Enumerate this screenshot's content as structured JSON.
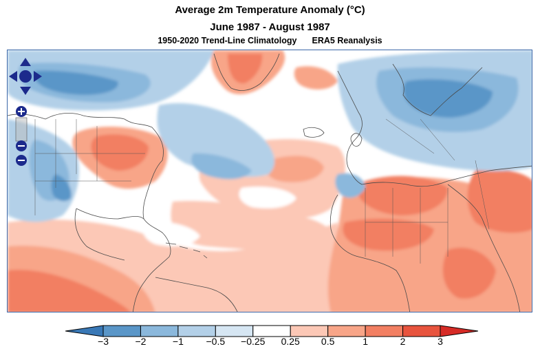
{
  "title": "Average 2m Temperature Anomaly (°C)",
  "period": "June 1987 - August 1987",
  "climatology": "1950-2020 Trend-Line Climatology",
  "dataset": "ERA5 Reanalysis",
  "colors": {
    "frame": "#3a66a8",
    "nav_button": "#1c2a8c",
    "bins": [
      "#3978b6",
      "#5a96c8",
      "#8bb8dc",
      "#b3d0e8",
      "#d6e6f3",
      "#ffffff",
      "#fcc8b6",
      "#f8a588",
      "#f27f62",
      "#e8543e",
      "#d62b26"
    ]
  },
  "colorbar": {
    "ticks": [
      "−3",
      "−2",
      "−1",
      "−0.5",
      "−0.25",
      "0.25",
      "0.5",
      "1",
      "2",
      "3"
    ]
  },
  "controls": {
    "pan": [
      "pan-up",
      "pan-left",
      "pan-right",
      "pan-down"
    ],
    "zoom": [
      "zoom-in",
      "zoom-out",
      "zoom-in",
      "zoom-out"
    ]
  }
}
